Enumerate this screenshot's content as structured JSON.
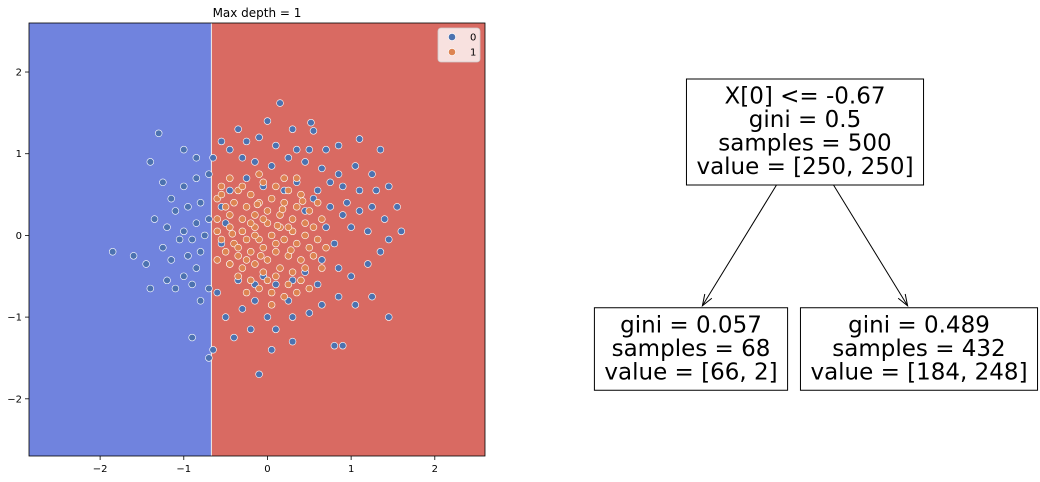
{
  "chart_data": [
    {
      "type": "scatter",
      "title": "Max depth = 1",
      "xlim": [
        -2.85,
        2.6
      ],
      "ylim": [
        -2.7,
        2.6
      ],
      "x_ticks": [
        -2,
        -1,
        0,
        1,
        2
      ],
      "x_tick_labels": [
        "−2",
        "−1",
        "0",
        "1",
        "2"
      ],
      "y_ticks": [
        -2,
        -1,
        0,
        1,
        2
      ],
      "y_tick_labels": [
        "−2",
        "−1",
        "0",
        "1",
        "2"
      ],
      "grid": false,
      "legend_position": "top-right",
      "decision_boundary": {
        "x_split": -0.67,
        "left_region_color": "#7083de",
        "right_region_color": "#d96a62",
        "left_class": "0",
        "right_class": "1"
      },
      "series": [
        {
          "name": "0",
          "color": "#4c72b0",
          "points": [
            [
              0.15,
              1.62
            ],
            [
              0.0,
              1.4
            ],
            [
              0.3,
              1.3
            ],
            [
              0.52,
              1.38
            ],
            [
              0.55,
              1.28
            ],
            [
              -0.35,
              1.3
            ],
            [
              -0.25,
              1.15
            ],
            [
              -0.1,
              1.2
            ],
            [
              0.1,
              1.1
            ],
            [
              0.35,
              1.05
            ],
            [
              0.5,
              1.05
            ],
            [
              0.7,
              1.05
            ],
            [
              0.85,
              1.1
            ],
            [
              1.1,
              1.18
            ],
            [
              1.35,
              1.05
            ],
            [
              -0.55,
              1.15
            ],
            [
              -0.45,
              1.05
            ],
            [
              -0.3,
              0.95
            ],
            [
              -0.15,
              0.9
            ],
            [
              0.05,
              0.85
            ],
            [
              0.25,
              0.95
            ],
            [
              0.45,
              0.9
            ],
            [
              0.65,
              0.82
            ],
            [
              0.85,
              0.75
            ],
            [
              1.05,
              0.85
            ],
            [
              1.25,
              0.75
            ],
            [
              1.45,
              0.6
            ],
            [
              1.3,
              0.55
            ],
            [
              1.1,
              0.55
            ],
            [
              0.9,
              0.6
            ],
            [
              0.75,
              0.65
            ],
            [
              -0.65,
              0.95
            ],
            [
              -0.85,
              0.95
            ],
            [
              -1.0,
              1.05
            ],
            [
              -1.3,
              1.25
            ],
            [
              -1.4,
              0.9
            ],
            [
              -1.25,
              0.65
            ],
            [
              -1.0,
              0.6
            ],
            [
              -0.85,
              0.7
            ],
            [
              -0.7,
              0.75
            ],
            [
              -1.15,
              0.45
            ],
            [
              -0.95,
              0.35
            ],
            [
              -0.8,
              0.4
            ],
            [
              -1.1,
              0.3
            ],
            [
              -1.35,
              0.2
            ],
            [
              -1.2,
              0.1
            ],
            [
              -1.0,
              0.05
            ],
            [
              -0.85,
              0.15
            ],
            [
              -0.7,
              0.2
            ],
            [
              -0.75,
              0.0
            ],
            [
              -0.9,
              -0.05
            ],
            [
              -1.05,
              -0.05
            ],
            [
              -1.25,
              -0.15
            ],
            [
              -1.45,
              -0.35
            ],
            [
              -1.15,
              -0.3
            ],
            [
              -0.95,
              -0.25
            ],
            [
              -0.8,
              -0.2
            ],
            [
              -0.85,
              -0.4
            ],
            [
              -1.0,
              -0.5
            ],
            [
              -1.2,
              -0.55
            ],
            [
              -1.1,
              -0.65
            ],
            [
              -0.9,
              -0.6
            ],
            [
              -1.4,
              -0.65
            ],
            [
              -0.8,
              -0.8
            ],
            [
              -0.7,
              -0.65
            ],
            [
              -0.6,
              -0.7
            ],
            [
              -1.85,
              -0.2
            ],
            [
              -1.6,
              -0.25
            ],
            [
              -0.9,
              -1.25
            ],
            [
              -0.7,
              -1.5
            ],
            [
              -0.65,
              -1.4
            ],
            [
              -0.5,
              -1.0
            ],
            [
              -0.3,
              -0.9
            ],
            [
              -0.15,
              -0.8
            ],
            [
              0.0,
              -1.0
            ],
            [
              0.1,
              -1.15
            ],
            [
              0.3,
              -1.0
            ],
            [
              0.5,
              -0.95
            ],
            [
              0.65,
              -0.85
            ],
            [
              0.85,
              -0.75
            ],
            [
              1.05,
              -0.85
            ],
            [
              1.25,
              -0.75
            ],
            [
              1.45,
              -1.0
            ],
            [
              0.8,
              -1.35
            ],
            [
              0.9,
              -1.35
            ],
            [
              0.3,
              -1.3
            ],
            [
              0.05,
              -1.4
            ],
            [
              -0.1,
              -1.7
            ],
            [
              -0.2,
              -1.15
            ],
            [
              -0.4,
              -1.25
            ],
            [
              1.2,
              -0.35
            ],
            [
              1.35,
              -0.2
            ],
            [
              1.0,
              -0.5
            ],
            [
              0.85,
              -0.4
            ],
            [
              1.2,
              0.05
            ],
            [
              1.4,
              0.2
            ],
            [
              1.55,
              0.35
            ],
            [
              1.6,
              0.05
            ],
            [
              1.45,
              -0.05
            ],
            [
              1.1,
              0.3
            ],
            [
              1.25,
              0.35
            ],
            [
              1.0,
              0.1
            ],
            [
              0.9,
              0.25
            ],
            [
              0.8,
              -0.1
            ],
            [
              0.7,
              0.1
            ],
            [
              0.65,
              -0.3
            ],
            [
              0.55,
              0.45
            ],
            [
              0.45,
              0.3
            ],
            [
              0.6,
              0.55
            ],
            [
              0.35,
              0.65
            ],
            [
              0.2,
              0.55
            ],
            [
              -0.05,
              0.6
            ],
            [
              -0.25,
              0.7
            ],
            [
              -0.45,
              0.55
            ],
            [
              -0.55,
              0.35
            ],
            [
              -0.5,
              0.15
            ],
            [
              -0.55,
              -0.1
            ],
            [
              -0.45,
              -0.35
            ],
            [
              -0.35,
              -0.55
            ],
            [
              -0.15,
              -0.6
            ],
            [
              0.1,
              -0.6
            ],
            [
              0.3,
              -0.55
            ],
            [
              0.45,
              -0.45
            ],
            [
              0.6,
              -0.6
            ],
            [
              0.25,
              -0.8
            ],
            [
              -0.05,
              -0.5
            ],
            [
              0.95,
              0.4
            ],
            [
              0.75,
              0.35
            ]
          ]
        },
        {
          "name": "1",
          "color": "#dd8452",
          "points": [
            [
              -0.55,
              0.6
            ],
            [
              -0.45,
              0.7
            ],
            [
              -0.35,
              0.55
            ],
            [
              -0.2,
              0.5
            ],
            [
              -0.05,
              0.65
            ],
            [
              0.1,
              0.6
            ],
            [
              0.25,
              0.55
            ],
            [
              0.4,
              0.5
            ],
            [
              -0.6,
              0.45
            ],
            [
              -0.5,
              0.35
            ],
            [
              -0.4,
              0.4
            ],
            [
              -0.25,
              0.35
            ],
            [
              -0.1,
              0.4
            ],
            [
              0.05,
              0.45
            ],
            [
              0.2,
              0.4
            ],
            [
              0.35,
              0.35
            ],
            [
              0.5,
              0.3
            ],
            [
              -0.6,
              0.2
            ],
            [
              -0.45,
              0.25
            ],
            [
              -0.3,
              0.2
            ],
            [
              -0.15,
              0.25
            ],
            [
              0.0,
              0.3
            ],
            [
              0.15,
              0.25
            ],
            [
              0.3,
              0.2
            ],
            [
              0.45,
              0.15
            ],
            [
              0.55,
              0.1
            ],
            [
              -0.6,
              0.05
            ],
            [
              -0.45,
              0.1
            ],
            [
              -0.3,
              0.05
            ],
            [
              -0.15,
              0.1
            ],
            [
              0.0,
              0.15
            ],
            [
              0.15,
              0.1
            ],
            [
              0.3,
              0.05
            ],
            [
              0.45,
              0.0
            ],
            [
              0.6,
              -0.05
            ],
            [
              -0.55,
              -0.05
            ],
            [
              -0.4,
              -0.1
            ],
            [
              -0.25,
              -0.05
            ],
            [
              -0.1,
              -0.05
            ],
            [
              0.05,
              0.0
            ],
            [
              0.2,
              -0.05
            ],
            [
              0.35,
              -0.1
            ],
            [
              0.5,
              -0.15
            ],
            [
              -0.5,
              -0.2
            ],
            [
              -0.35,
              -0.25
            ],
            [
              -0.2,
              -0.2
            ],
            [
              -0.05,
              -0.15
            ],
            [
              0.1,
              -0.2
            ],
            [
              0.25,
              -0.25
            ],
            [
              0.4,
              -0.3
            ],
            [
              0.55,
              -0.25
            ],
            [
              -0.45,
              -0.35
            ],
            [
              -0.3,
              -0.4
            ],
            [
              -0.15,
              -0.35
            ],
            [
              0.0,
              -0.3
            ],
            [
              0.15,
              -0.4
            ],
            [
              0.3,
              -0.45
            ],
            [
              0.45,
              -0.4
            ],
            [
              -0.35,
              -0.5
            ],
            [
              -0.2,
              -0.55
            ],
            [
              -0.05,
              -0.45
            ],
            [
              0.1,
              -0.5
            ],
            [
              0.25,
              -0.6
            ],
            [
              0.4,
              -0.55
            ],
            [
              -0.25,
              -0.7
            ],
            [
              -0.1,
              -0.65
            ],
            [
              0.05,
              -0.7
            ],
            [
              0.2,
              -0.75
            ],
            [
              0.35,
              -0.7
            ],
            [
              -0.15,
              0.0
            ],
            [
              -0.05,
              0.2
            ],
            [
              0.1,
              -0.1
            ],
            [
              0.25,
              0.1
            ],
            [
              -0.35,
              -0.15
            ],
            [
              0.0,
              -0.55
            ],
            [
              0.6,
              0.4
            ],
            [
              0.65,
              0.2
            ],
            [
              0.7,
              -0.15
            ],
            [
              0.65,
              -0.4
            ],
            [
              -0.6,
              -0.3
            ],
            [
              -0.55,
              0.5
            ],
            [
              0.2,
              0.7
            ],
            [
              -0.1,
              0.75
            ],
            [
              0.05,
              -0.85
            ],
            [
              0.5,
              -0.65
            ],
            [
              -0.3,
              0.6
            ],
            [
              0.35,
              0.7
            ],
            [
              -0.2,
              0.15
            ],
            [
              0.12,
              0.12
            ],
            [
              -0.08,
              -0.25
            ],
            [
              0.28,
              -0.18
            ],
            [
              -0.42,
              0.02
            ],
            [
              0.42,
              0.42
            ],
            [
              -0.25,
              -0.3
            ],
            [
              0.18,
              0.32
            ],
            [
              -0.12,
              0.38
            ]
          ]
        }
      ]
    },
    {
      "type": "tree",
      "nodes": [
        {
          "id": "root",
          "lines": [
            "X[0] <= -0.67",
            "gini = 0.5",
            "samples = 500",
            "value = [250, 250]"
          ]
        },
        {
          "id": "left",
          "lines": [
            "gini = 0.057",
            "samples = 68",
            "value = [66, 2]"
          ]
        },
        {
          "id": "right",
          "lines": [
            "gini = 0.489",
            "samples = 432",
            "value = [184, 248]"
          ]
        }
      ],
      "edges": [
        [
          "root",
          "left"
        ],
        [
          "root",
          "right"
        ]
      ]
    }
  ]
}
